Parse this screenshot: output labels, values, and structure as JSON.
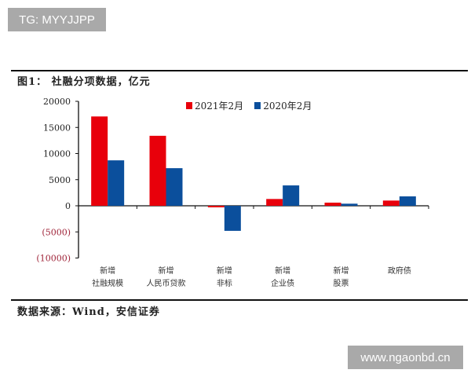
{
  "watermarks": {
    "top": "TG: MYYJJPP",
    "bottom": "www.ngaonbd.cn"
  },
  "figure": {
    "title": "图1： 社融分项数据，亿元",
    "source": "数据来源：Wind，安信证券"
  },
  "colors": {
    "series_2021": "#e8000b",
    "series_2020": "#0b4f9c",
    "negative_tick": "#a0253a"
  },
  "chart_data": {
    "type": "bar",
    "title": "社融分项数据，亿元",
    "xlabel": "",
    "ylabel": "亿元",
    "ylim": [
      -10000,
      20000
    ],
    "yticks": [
      20000,
      15000,
      10000,
      5000,
      0,
      -5000,
      -10000
    ],
    "ytick_labels": [
      "20000",
      "15000",
      "10000",
      "5000",
      "0",
      "(5000)",
      "(10000)"
    ],
    "categories": [
      "新增社融规模",
      "新增人民币贷款",
      "新增非标",
      "新增企业债",
      "新增股票",
      "政府债"
    ],
    "category_lines": [
      [
        "新增",
        "社融规模"
      ],
      [
        "新增",
        "人民币贷款"
      ],
      [
        "新增",
        "非标"
      ],
      [
        "新增",
        "企业债"
      ],
      [
        "新增",
        "股票"
      ],
      [
        "政府债",
        ""
      ]
    ],
    "series": [
      {
        "name": "2021年2月",
        "values": [
          17100,
          13400,
          -300,
          1300,
          600,
          1000
        ]
      },
      {
        "name": "2020年2月",
        "values": [
          8700,
          7200,
          -4800,
          3900,
          400,
          1800
        ]
      }
    ],
    "legend_position": "top",
    "grid": false
  }
}
